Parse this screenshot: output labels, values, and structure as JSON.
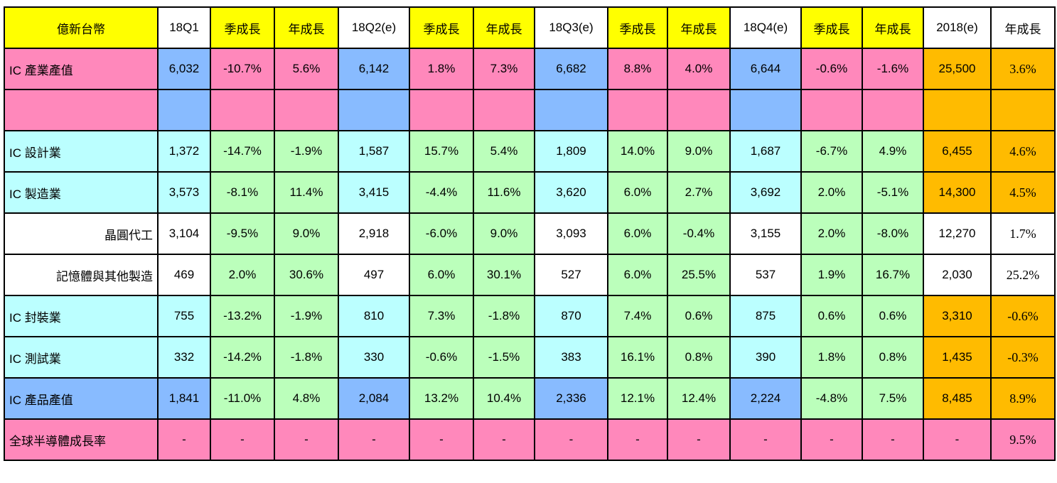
{
  "header": [
    "億新台幣",
    "18Q1",
    "季成長",
    "年成長",
    "18Q2(e)",
    "季成長",
    "年成長",
    "18Q3(e)",
    "季成長",
    "年成長",
    "18Q4(e)",
    "季成長",
    "年成長",
    "2018(e)",
    "年成長"
  ],
  "rows": [
    {
      "label": "IC 產業產值",
      "indent": false,
      "cells": [
        "6,032",
        "-10.7%",
        "5.6%",
        "6,142",
        "1.8%",
        "7.3%",
        "6,682",
        "8.8%",
        "4.0%",
        "6,644",
        "-0.6%",
        "-1.6%",
        "25,500",
        "3.6%"
      ]
    },
    {
      "label": "",
      "indent": false,
      "cells": [
        "",
        "",
        "",
        "",
        "",
        "",
        "",
        "",
        "",
        "",
        "",
        "",
        "",
        ""
      ]
    },
    {
      "label": "IC 設計業",
      "indent": false,
      "cells": [
        "1,372",
        "-14.7%",
        "-1.9%",
        "1,587",
        "15.7%",
        "5.4%",
        "1,809",
        "14.0%",
        "9.0%",
        "1,687",
        "-6.7%",
        "4.9%",
        "6,455",
        "4.6%"
      ]
    },
    {
      "label": "IC 製造業",
      "indent": false,
      "cells": [
        "3,573",
        "-8.1%",
        "11.4%",
        "3,415",
        "-4.4%",
        "11.6%",
        "3,620",
        "6.0%",
        "2.7%",
        "3,692",
        "2.0%",
        "-5.1%",
        "14,300",
        "4.5%"
      ]
    },
    {
      "label": "晶圓代工",
      "indent": true,
      "cells": [
        "3,104",
        "-9.5%",
        "9.0%",
        "2,918",
        "-6.0%",
        "9.0%",
        "3,093",
        "6.0%",
        "-0.4%",
        "3,155",
        "2.0%",
        "-8.0%",
        "12,270",
        "1.7%"
      ]
    },
    {
      "label": "記憶體與其他製造",
      "indent": true,
      "cells": [
        "469",
        "2.0%",
        "30.6%",
        "497",
        "6.0%",
        "30.1%",
        "527",
        "6.0%",
        "25.5%",
        "537",
        "1.9%",
        "16.7%",
        "2,030",
        "25.2%"
      ]
    },
    {
      "label": "IC 封裝業",
      "indent": false,
      "cells": [
        "755",
        "-13.2%",
        "-1.9%",
        "810",
        "7.3%",
        "-1.8%",
        "870",
        "7.4%",
        "0.6%",
        "875",
        "0.6%",
        "0.6%",
        "3,310",
        "-0.6%"
      ]
    },
    {
      "label": "IC 測試業",
      "indent": false,
      "cells": [
        "332",
        "-14.2%",
        "-1.8%",
        "330",
        "-0.6%",
        "-1.5%",
        "383",
        "16.1%",
        "0.8%",
        "390",
        "1.8%",
        "0.8%",
        "1,435",
        "-0.3%"
      ]
    },
    {
      "label": "IC 產品產值",
      "indent": false,
      "cells": [
        "1,841",
        "-11.0%",
        "4.8%",
        "2,084",
        "13.2%",
        "10.4%",
        "2,336",
        "12.1%",
        "12.4%",
        "2,224",
        "-4.8%",
        "7.5%",
        "8,485",
        "8.9%"
      ]
    },
    {
      "label": "全球半導體成長率",
      "indent": false,
      "cells": [
        "-",
        "-",
        "-",
        "-",
        "-",
        "-",
        "-",
        "-",
        "-",
        "-",
        "-",
        "-",
        "-",
        "9.5%"
      ]
    }
  ],
  "colors": {
    "yellow": "#ffff00",
    "pink": "#ff88bb",
    "blue": "#88bbff",
    "cyan": "#bbffff",
    "green": "#bbffbb",
    "white": "#ffffff",
    "orange": "#ffbb00"
  }
}
